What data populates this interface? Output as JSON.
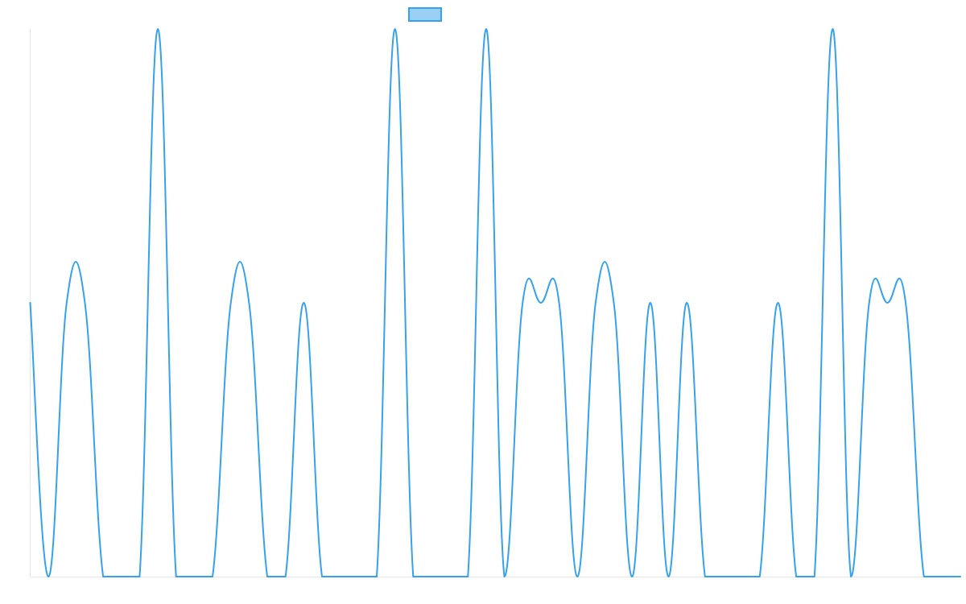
{
  "chart_data": {
    "type": "line",
    "title": "",
    "xlabel": "",
    "ylabel": "",
    "ylim": [
      0,
      2
    ],
    "grid": false,
    "legend": {
      "placement": "top-center",
      "label": ""
    },
    "colors": {
      "line": "#36a2eb",
      "legend_fill": "#9ad0f5",
      "axis": "#e6e6e6"
    },
    "x": [
      0,
      1,
      2,
      3,
      4,
      5,
      6,
      7,
      8,
      9,
      10,
      11,
      12,
      13,
      14,
      15,
      16,
      17,
      18,
      19,
      20,
      21,
      22,
      23,
      24,
      25,
      26,
      27,
      28,
      29,
      30,
      31,
      32,
      33,
      34,
      35,
      36,
      37,
      38,
      39,
      40,
      41,
      42,
      43,
      44,
      45,
      46,
      47,
      48,
      49,
      50,
      51
    ],
    "series": [
      {
        "name": "",
        "values": [
          1,
          0,
          1,
          1,
          0,
          0,
          0,
          2,
          0,
          0,
          0,
          1,
          1,
          0,
          0,
          1,
          0,
          0,
          0,
          0,
          2,
          0,
          0,
          0,
          0,
          2,
          0,
          1,
          1,
          1,
          0,
          1,
          1,
          0,
          1,
          0,
          1,
          0,
          0,
          0,
          0,
          1,
          0,
          0,
          2,
          0,
          1,
          1,
          1,
          0,
          0,
          0
        ]
      }
    ]
  }
}
